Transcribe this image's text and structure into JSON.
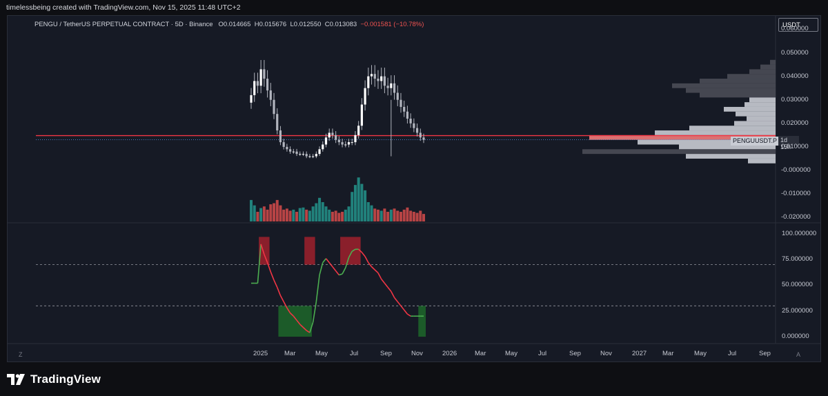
{
  "header": {
    "credit": "timelessbeing created with TradingView.com, Nov 15, 2025 11:48 UTC+2"
  },
  "legend": {
    "symbol": "PENGU / TetherUS PERPETUAL CONTRACT · 5D · Binance",
    "open": "O0.014665",
    "high": "H0.015676",
    "low": "L0.012550",
    "close": "C0.013083",
    "change": "−0.001581 (−10.78%)"
  },
  "currency": "USDT",
  "symbol_tag": "PENGUUSDT.P",
  "countdown": "1d 15h",
  "brand": {
    "name": "TradingView"
  },
  "buttons": {
    "z": "Z",
    "a": "A"
  },
  "colors": {
    "up": "#b2b5be",
    "down": "#b2b5be",
    "vol_up": "#26a69a",
    "vol_down": "#ef5350",
    "stoch_up": "#4caf50",
    "stoch_down": "#f23645",
    "resistance": "#f23645"
  },
  "chart_data": [
    {
      "type": "candlestick",
      "title": "PENGU / TetherUS PERPETUAL CONTRACT · 5D · Binance",
      "x_axis_labels": [
        "2025",
        "Mar",
        "May",
        "Jul",
        "Sep",
        "Nov",
        "2026",
        "Mar",
        "May",
        "Jul",
        "Sep",
        "Nov",
        "2027",
        "Mar",
        "May",
        "Jul",
        "Sep"
      ],
      "y_axis_labels": [
        "0.060000",
        "0.050000",
        "0.040000",
        "0.030000",
        "0.020000",
        "0.010000",
        "-0.000000",
        "-0.010000",
        "-0.020000"
      ],
      "ylim": [
        -0.022,
        0.066
      ],
      "series": [
        {
          "name": "PENGU",
          "close": [
            0.032,
            0.038,
            0.036,
            0.043,
            0.039,
            0.034,
            0.03,
            0.024,
            0.017,
            0.012,
            0.01,
            0.009,
            0.008,
            0.008,
            0.007,
            0.007,
            0.007,
            0.006,
            0.006,
            0.006,
            0.007,
            0.009,
            0.011,
            0.014,
            0.016,
            0.015,
            0.013,
            0.012,
            0.011,
            0.011,
            0.012,
            0.012,
            0.015,
            0.019,
            0.028,
            0.035,
            0.04,
            0.041,
            0.039,
            0.038,
            0.04,
            0.036,
            0.035,
            0.037,
            0.033,
            0.03,
            0.027,
            0.025,
            0.022,
            0.02,
            0.018,
            0.016,
            0.014,
            0.013
          ]
        },
        {
          "name": "Volume",
          "values": [
            40,
            30,
            18,
            25,
            28,
            22,
            32,
            34,
            40,
            30,
            22,
            24,
            20,
            22,
            18,
            25,
            26,
            22,
            20,
            28,
            34,
            44,
            36,
            28,
            22,
            18,
            20,
            16,
            18,
            22,
            28,
            55,
            68,
            82,
            70,
            58,
            36,
            30,
            24,
            22,
            20,
            24,
            18,
            22,
            24,
            20,
            18,
            22,
            26,
            20,
            18,
            16,
            20,
            14
          ]
        }
      ],
      "horizontal_lines": [
        0.0148,
        0.0131
      ],
      "volume_profile": true
    },
    {
      "type": "line",
      "title": "",
      "y_axis_labels": [
        "100.000000",
        "75.000000",
        "50.000000",
        "25.000000",
        "0.000000"
      ],
      "ylim": [
        -6,
        110
      ],
      "levels": [
        70,
        30
      ],
      "series": [
        {
          "name": "",
          "x": [
            0,
            1,
            2,
            3,
            4,
            5,
            6,
            7,
            8,
            9,
            10,
            11,
            12,
            13,
            14,
            15,
            16,
            17,
            18,
            19,
            20,
            21,
            22,
            23,
            24,
            25,
            26,
            27,
            28,
            29,
            30,
            31,
            32,
            33,
            34,
            35,
            36,
            37,
            38,
            39,
            40,
            41,
            42,
            43,
            44,
            45,
            46,
            47,
            48,
            49,
            50,
            51,
            52,
            53
          ],
          "values": [
            52,
            52,
            52,
            90,
            80,
            72,
            63,
            55,
            48,
            40,
            34,
            28,
            23,
            20,
            16,
            12,
            9,
            6,
            4,
            14,
            34,
            60,
            72,
            76,
            72,
            68,
            64,
            60,
            61,
            67,
            77,
            83,
            85,
            85,
            82,
            78,
            72,
            68,
            65,
            62,
            56,
            52,
            48,
            44,
            38,
            34,
            30,
            26,
            22,
            20,
            20,
            20,
            20,
            20
          ]
        }
      ],
      "overbought_zones": [
        [
          3,
          5
        ],
        [
          17,
          19
        ],
        [
          28,
          33
        ]
      ],
      "oversold_zones": [
        [
          9,
          18
        ],
        [
          52,
          53
        ]
      ]
    }
  ]
}
